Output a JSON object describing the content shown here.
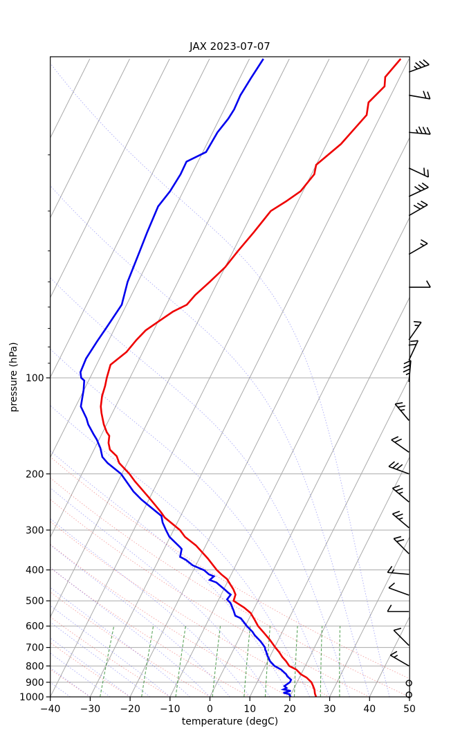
{
  "title": "JAX 2023-07-07",
  "chart_data": {
    "type": "line",
    "variant": "skewT-logP-sounding",
    "title": "JAX 2023-07-07",
    "xlabel": "temperature (degC)",
    "ylabel": "pressure (hPa)",
    "x_axis": {
      "min": -40,
      "max": 50,
      "ticks": [
        -40,
        -30,
        -20,
        -10,
        0,
        10,
        20,
        30,
        40,
        50
      ]
    },
    "y_axis": {
      "scale": "log",
      "bottom_hpa": 1000,
      "top_hpa": 10,
      "labeled_ticks": [
        100,
        200,
        300,
        400,
        500,
        600,
        700,
        800,
        900,
        1000
      ],
      "minor_ticks": [
        20,
        30,
        40,
        50,
        60,
        70,
        80,
        90
      ]
    },
    "grid": true,
    "legend": "none",
    "series": [
      {
        "name": "temperature",
        "color": "#ee0000",
        "points": [
          [
            1000,
            26.6
          ],
          [
            977,
            25.9
          ],
          [
            950,
            25.3
          ],
          [
            925,
            24.5
          ],
          [
            900,
            23.6
          ],
          [
            870,
            21.8
          ],
          [
            850,
            20.0
          ],
          [
            821,
            18.2
          ],
          [
            800,
            16.0
          ],
          [
            773,
            14.6
          ],
          [
            751,
            13.2
          ],
          [
            725,
            11.8
          ],
          [
            700,
            10.2
          ],
          [
            663,
            7.9
          ],
          [
            631,
            5.6
          ],
          [
            600,
            3.2
          ],
          [
            574,
            1.6
          ],
          [
            546,
            -0.3
          ],
          [
            525,
            -2.6
          ],
          [
            500,
            -6.1
          ],
          [
            478,
            -6.4
          ],
          [
            460,
            -7.6
          ],
          [
            427,
            -10.5
          ],
          [
            413,
            -12.5
          ],
          [
            400,
            -14.2
          ],
          [
            368,
            -17.9
          ],
          [
            335,
            -22.5
          ],
          [
            315,
            -26.3
          ],
          [
            300,
            -28.4
          ],
          [
            274,
            -33.8
          ],
          [
            263,
            -35.5
          ],
          [
            239,
            -39.9
          ],
          [
            211,
            -45.8
          ],
          [
            200,
            -48.1
          ],
          [
            185,
            -52.0
          ],
          [
            176,
            -53.5
          ],
          [
            168,
            -56.0
          ],
          [
            160,
            -57.2
          ],
          [
            152,
            -57.9
          ],
          [
            148,
            -59.0
          ],
          [
            140,
            -60.7
          ],
          [
            129,
            -62.7
          ],
          [
            123,
            -63.7
          ],
          [
            114,
            -64.7
          ],
          [
            106,
            -65.2
          ],
          [
            100,
            -65.8
          ],
          [
            91,
            -66.5
          ],
          [
            83,
            -64.1
          ],
          [
            76,
            -63.1
          ],
          [
            71,
            -62.0
          ],
          [
            66,
            -59.6
          ],
          [
            62,
            -57.5
          ],
          [
            59,
            -54.9
          ],
          [
            55,
            -54.0
          ],
          [
            50,
            -52.0
          ],
          [
            45,
            -50.0
          ],
          [
            40,
            -48.8
          ],
          [
            35,
            -47.2
          ],
          [
            30,
            -45.6
          ],
          [
            28,
            -43.0
          ],
          [
            26,
            -40.6
          ],
          [
            23,
            -39.3
          ],
          [
            21.5,
            -40.0
          ],
          [
            18.5,
            -36.4
          ],
          [
            15,
            -33.6
          ],
          [
            13.7,
            -34.7
          ],
          [
            12.2,
            -32.7
          ],
          [
            11.4,
            -33.7
          ],
          [
            10,
            -32.1
          ]
        ]
      },
      {
        "name": "dewpoint",
        "color": "#0000ee",
        "points": [
          [
            1000,
            20.3
          ],
          [
            990,
            19.8
          ],
          [
            981,
            19.6
          ],
          [
            971,
            17.9
          ],
          [
            958,
            19.5
          ],
          [
            948,
            17.5
          ],
          [
            938,
            18.1
          ],
          [
            925,
            17.3
          ],
          [
            900,
            18.2
          ],
          [
            884,
            18.2
          ],
          [
            862,
            16.8
          ],
          [
            850,
            16.3
          ],
          [
            821,
            14.4
          ],
          [
            800,
            12.3
          ],
          [
            773,
            10.6
          ],
          [
            755,
            9.8
          ],
          [
            737,
            9.0
          ],
          [
            718,
            8.3
          ],
          [
            713,
            8.0
          ],
          [
            700,
            7.6
          ],
          [
            685,
            6.7
          ],
          [
            668,
            5.6
          ],
          [
            641,
            3.5
          ],
          [
            625,
            2.5
          ],
          [
            600,
            0.4
          ],
          [
            567,
            -2.1
          ],
          [
            557,
            -3.8
          ],
          [
            536,
            -4.9
          ],
          [
            508,
            -6.6
          ],
          [
            495,
            -7.9
          ],
          [
            478,
            -7.6
          ],
          [
            472,
            -8.4
          ],
          [
            462,
            -9.6
          ],
          [
            438,
            -12.7
          ],
          [
            430,
            -14.7
          ],
          [
            419,
            -14.1
          ],
          [
            413,
            -15.6
          ],
          [
            401,
            -17.3
          ],
          [
            387,
            -20.8
          ],
          [
            372,
            -23.2
          ],
          [
            364,
            -25.0
          ],
          [
            344,
            -25.6
          ],
          [
            339,
            -26.3
          ],
          [
            315,
            -30.2
          ],
          [
            301,
            -31.8
          ],
          [
            284,
            -33.7
          ],
          [
            271,
            -34.8
          ],
          [
            241,
            -41.8
          ],
          [
            227,
            -44.9
          ],
          [
            200,
            -50.2
          ],
          [
            185,
            -54.9
          ],
          [
            177,
            -57.0
          ],
          [
            166,
            -58.6
          ],
          [
            156,
            -60.6
          ],
          [
            150,
            -62.1
          ],
          [
            140,
            -64.6
          ],
          [
            134,
            -65.8
          ],
          [
            123,
            -68.7
          ],
          [
            109,
            -70.1
          ],
          [
            102,
            -71.1
          ],
          [
            100,
            -72.2
          ],
          [
            96,
            -73.1
          ],
          [
            87,
            -73.4
          ],
          [
            77,
            -72.8
          ],
          [
            70,
            -72.2
          ],
          [
            59,
            -71.2
          ],
          [
            50,
            -72.6
          ],
          [
            40,
            -73.4
          ],
          [
            35,
            -73.9
          ],
          [
            29,
            -74.4
          ],
          [
            26,
            -73.3
          ],
          [
            23,
            -72.8
          ],
          [
            21,
            -72.9
          ],
          [
            19.6,
            -69.2
          ],
          [
            17,
            -68.8
          ],
          [
            15.4,
            -67.8
          ],
          [
            14.4,
            -67.5
          ],
          [
            13,
            -67.7
          ],
          [
            11.5,
            -67.2
          ],
          [
            10,
            -66.5
          ]
        ]
      }
    ],
    "wind_barbs": {
      "color": "#000000",
      "units": "kt",
      "stations": [
        {
          "p": 11,
          "speed_kt": 35,
          "staff_angle_deg": -20
        },
        {
          "p": 13,
          "speed_kt": 20,
          "staff_angle_deg": 10
        },
        {
          "p": 17,
          "speed_kt": 35,
          "staff_angle_deg": 5
        },
        {
          "p": 22,
          "speed_kt": 20,
          "staff_angle_deg": 25
        },
        {
          "p": 27,
          "speed_kt": 30,
          "staff_angle_deg": -25
        },
        {
          "p": 31,
          "speed_kt": 30,
          "staff_angle_deg": -30
        },
        {
          "p": 41,
          "speed_kt": 15,
          "staff_angle_deg": -30
        },
        {
          "p": 52,
          "speed_kt": 10,
          "staff_angle_deg": 0
        },
        {
          "p": 76,
          "speed_kt": 15,
          "staff_angle_deg": -55
        },
        {
          "p": 88,
          "speed_kt": 20,
          "staff_angle_deg": -65
        },
        {
          "p": 103,
          "speed_kt": 35,
          "staff_angle_deg": -85
        },
        {
          "p": 136,
          "speed_kt": 25,
          "staff_angle_deg": -130
        },
        {
          "p": 171,
          "speed_kt": 20,
          "staff_angle_deg": -145
        },
        {
          "p": 200,
          "speed_kt": 30,
          "staff_angle_deg": -160
        },
        {
          "p": 245,
          "speed_kt": 25,
          "staff_angle_deg": -140
        },
        {
          "p": 295,
          "speed_kt": 25,
          "staff_angle_deg": -140
        },
        {
          "p": 356,
          "speed_kt": 20,
          "staff_angle_deg": -135
        },
        {
          "p": 413,
          "speed_kt": 15,
          "staff_angle_deg": -175
        },
        {
          "p": 480,
          "speed_kt": 10,
          "staff_angle_deg": -160
        },
        {
          "p": 540,
          "speed_kt": 10,
          "staff_angle_deg": 180
        },
        {
          "p": 690,
          "speed_kt": 10,
          "staff_angle_deg": -135
        },
        {
          "p": 800,
          "speed_kt": 15,
          "staff_angle_deg": -150
        },
        {
          "p": 905,
          "speed_kt": 0,
          "staff_angle_deg": 0
        },
        {
          "p": 985,
          "speed_kt": 0,
          "staff_angle_deg": 0
        }
      ]
    },
    "background_lines": {
      "isotherms": {
        "color": "#a9a9a9",
        "t_start": -150,
        "t_end": 50,
        "step": 10,
        "style": "solid"
      },
      "pressure_grid": {
        "color": "#a9a9a9",
        "levels": [
          100,
          200,
          300,
          400,
          500,
          600,
          700,
          800,
          900,
          1000
        ],
        "style": "solid"
      },
      "dry_adiabats": {
        "color": "rgba(230,40,40,0.40)",
        "theta_start": -40,
        "theta_end": 60,
        "step": 10,
        "style": "dotted"
      },
      "moist_adiabats": {
        "color": "rgba(50,50,235,0.38)",
        "t0_start": -40,
        "t0_end": 45,
        "step": 5,
        "style": "dotted"
      },
      "mixing_ratio": {
        "color": "rgba(20,125,20,0.70)",
        "values_g_kg": [
          0.4,
          1,
          2,
          4,
          7,
          10,
          16,
          24,
          32
        ],
        "p_bottom": 1000,
        "p_top": 600,
        "style": "dashed"
      }
    }
  }
}
